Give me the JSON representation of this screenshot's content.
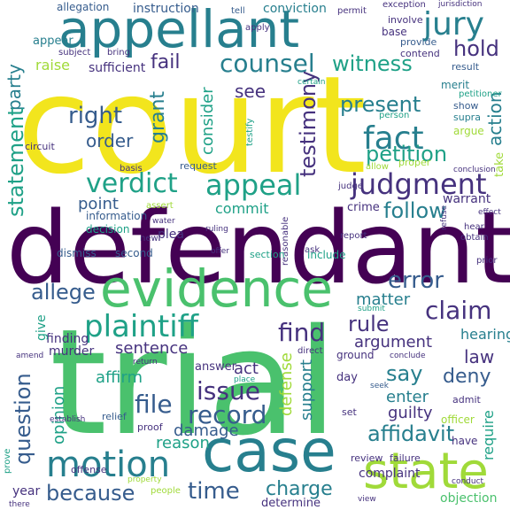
{
  "palette": {
    "yellow": "#f2e51d",
    "lime": "#a0da39",
    "green": "#4ac16d",
    "teal": "#1fa187",
    "cyan": "#277f8e",
    "blue": "#365c8d",
    "indigo": "#46327e",
    "purple": "#440154"
  },
  "words": [
    {
      "text": "court",
      "color": "yellow"
    },
    {
      "text": "defendant",
      "color": "purple"
    },
    {
      "text": "trial",
      "color": "green"
    },
    {
      "text": "appellant",
      "color": "cyan"
    },
    {
      "text": "evidence",
      "color": "green"
    },
    {
      "text": "case",
      "color": "cyan"
    },
    {
      "text": "state",
      "color": "lime"
    },
    {
      "text": "motion",
      "color": "cyan"
    },
    {
      "text": "jury",
      "color": "cyan"
    },
    {
      "text": "counsel",
      "color": "cyan"
    },
    {
      "text": "witness",
      "color": "teal"
    },
    {
      "text": "fail",
      "color": "indigo"
    },
    {
      "text": "party",
      "color": "cyan"
    },
    {
      "text": "hold",
      "color": "indigo"
    },
    {
      "text": "right",
      "color": "blue"
    },
    {
      "text": "order",
      "color": "blue"
    },
    {
      "text": "see",
      "color": "indigo"
    },
    {
      "text": "fact",
      "color": "cyan"
    },
    {
      "text": "present",
      "color": "cyan"
    },
    {
      "text": "petition",
      "color": "teal"
    },
    {
      "text": "testimony",
      "color": "indigo"
    },
    {
      "text": "judgment",
      "color": "indigo"
    },
    {
      "text": "appeal",
      "color": "teal"
    },
    {
      "text": "verdict",
      "color": "teal"
    },
    {
      "text": "statement",
      "color": "teal"
    },
    {
      "text": "point",
      "color": "blue"
    },
    {
      "text": "commit",
      "color": "teal"
    },
    {
      "text": "follow",
      "color": "cyan"
    },
    {
      "text": "error",
      "color": "blue"
    },
    {
      "text": "plaintiff",
      "color": "teal"
    },
    {
      "text": "find",
      "color": "indigo"
    },
    {
      "text": "claim",
      "color": "indigo"
    },
    {
      "text": "allege",
      "color": "blue"
    },
    {
      "text": "rule",
      "color": "indigo"
    },
    {
      "text": "question",
      "color": "blue"
    },
    {
      "text": "issue",
      "color": "indigo"
    },
    {
      "text": "record",
      "color": "blue"
    },
    {
      "text": "file",
      "color": "blue"
    },
    {
      "text": "because",
      "color": "blue"
    },
    {
      "text": "time",
      "color": "blue"
    },
    {
      "text": "charge",
      "color": "cyan"
    },
    {
      "text": "affidavit",
      "color": "cyan"
    },
    {
      "text": "say",
      "color": "cyan"
    },
    {
      "text": "law",
      "color": "indigo"
    },
    {
      "text": "deny",
      "color": "blue"
    },
    {
      "text": "matter",
      "color": "cyan"
    },
    {
      "text": "argument",
      "color": "indigo"
    },
    {
      "text": "raise",
      "color": "lime"
    },
    {
      "text": "grant",
      "color": "cyan"
    },
    {
      "text": "consider",
      "color": "teal"
    },
    {
      "text": "action",
      "color": "cyan"
    },
    {
      "text": "sentence",
      "color": "indigo"
    },
    {
      "text": "affirm",
      "color": "teal"
    },
    {
      "text": "damage",
      "color": "blue"
    },
    {
      "text": "opinion",
      "color": "teal"
    },
    {
      "text": "defense",
      "color": "lime"
    },
    {
      "text": "support",
      "color": "cyan"
    },
    {
      "text": "enter",
      "color": "cyan"
    },
    {
      "text": "guilty",
      "color": "indigo"
    },
    {
      "text": "require",
      "color": "teal"
    },
    {
      "text": "hearing",
      "color": "cyan"
    },
    {
      "text": "give",
      "color": "teal"
    },
    {
      "text": "act",
      "color": "indigo"
    },
    {
      "text": "reason",
      "color": "teal"
    },
    {
      "text": "complaint",
      "color": "indigo"
    },
    {
      "text": "objection",
      "color": "green"
    },
    {
      "text": "sufficient",
      "color": "indigo"
    },
    {
      "text": "instruction",
      "color": "blue"
    },
    {
      "text": "allegation",
      "color": "blue"
    },
    {
      "text": "conviction",
      "color": "cyan"
    },
    {
      "text": "appear",
      "color": "cyan"
    },
    {
      "text": "result",
      "color": "blue"
    },
    {
      "text": "merit",
      "color": "cyan"
    },
    {
      "text": "show",
      "color": "blue"
    },
    {
      "text": "supra",
      "color": "cyan"
    },
    {
      "text": "argue",
      "color": "lime"
    },
    {
      "text": "take",
      "color": "lime"
    },
    {
      "text": "warrant",
      "color": "indigo"
    },
    {
      "text": "crime",
      "color": "indigo"
    },
    {
      "text": "request",
      "color": "blue"
    },
    {
      "text": "information",
      "color": "blue"
    },
    {
      "text": "decision",
      "color": "teal"
    },
    {
      "text": "dismiss",
      "color": "blue"
    },
    {
      "text": "second",
      "color": "blue"
    },
    {
      "text": "plea",
      "color": "indigo"
    },
    {
      "text": "include",
      "color": "teal"
    },
    {
      "text": "finding",
      "color": "indigo"
    },
    {
      "text": "murder",
      "color": "indigo"
    },
    {
      "text": "answer",
      "color": "indigo"
    },
    {
      "text": "ground",
      "color": "indigo"
    },
    {
      "text": "day",
      "color": "indigo"
    },
    {
      "text": "set",
      "color": "indigo"
    },
    {
      "text": "review",
      "color": "indigo"
    },
    {
      "text": "failure",
      "color": "indigo"
    },
    {
      "text": "year",
      "color": "indigo"
    },
    {
      "text": "determine",
      "color": "indigo"
    },
    {
      "text": "officer",
      "color": "lime"
    },
    {
      "text": "have",
      "color": "indigo"
    },
    {
      "text": "admit",
      "color": "indigo"
    },
    {
      "text": "prove",
      "color": "teal"
    },
    {
      "text": "offense",
      "color": "indigo"
    },
    {
      "text": "relief",
      "color": "blue"
    },
    {
      "text": "proof",
      "color": "indigo"
    },
    {
      "text": "people",
      "color": "lime"
    },
    {
      "text": "testify",
      "color": "teal"
    },
    {
      "text": "circuit",
      "color": "indigo"
    },
    {
      "text": "basis",
      "color": "indigo"
    },
    {
      "text": "base",
      "color": "indigo"
    },
    {
      "text": "provide",
      "color": "blue"
    },
    {
      "text": "contend",
      "color": "indigo"
    },
    {
      "text": "involve",
      "color": "indigo"
    },
    {
      "text": "subject",
      "color": "indigo"
    },
    {
      "text": "apply",
      "color": "indigo"
    },
    {
      "text": "tell",
      "color": "blue"
    },
    {
      "text": "permit",
      "color": "indigo"
    },
    {
      "text": "exception",
      "color": "indigo"
    },
    {
      "text": "jurisdiction",
      "color": "indigo"
    },
    {
      "text": "person",
      "color": "teal"
    },
    {
      "text": "judge",
      "color": "indigo"
    },
    {
      "text": "proper",
      "color": "lime"
    },
    {
      "text": "allow",
      "color": "lime"
    },
    {
      "text": "conclusion",
      "color": "indigo"
    },
    {
      "text": "reasonable",
      "color": "indigo"
    },
    {
      "text": "report",
      "color": "indigo"
    },
    {
      "text": "hear",
      "color": "indigo"
    },
    {
      "text": "obtain",
      "color": "indigo"
    },
    {
      "text": "prior",
      "color": "indigo"
    },
    {
      "text": "ask",
      "color": "indigo"
    },
    {
      "text": "section",
      "color": "teal"
    },
    {
      "text": "offer",
      "color": "indigo"
    },
    {
      "text": "water",
      "color": "indigo"
    },
    {
      "text": "new",
      "color": "indigo"
    },
    {
      "text": "refuse",
      "color": "indigo"
    },
    {
      "text": "direct",
      "color": "indigo"
    },
    {
      "text": "seek",
      "color": "blue"
    },
    {
      "text": "conclude",
      "color": "indigo"
    },
    {
      "text": "return",
      "color": "indigo"
    },
    {
      "text": "establish",
      "color": "indigo"
    },
    {
      "text": "amend",
      "color": "indigo"
    },
    {
      "text": "submit",
      "color": "teal"
    },
    {
      "text": "place",
      "color": "teal"
    },
    {
      "text": "conduct",
      "color": "indigo"
    },
    {
      "text": "view",
      "color": "indigo"
    },
    {
      "text": "effect",
      "color": "indigo"
    },
    {
      "text": "intent",
      "color": "indigo"
    },
    {
      "text": "bring",
      "color": "indigo"
    },
    {
      "text": "certain",
      "color": "teal"
    },
    {
      "text": "ruling",
      "color": "indigo"
    },
    {
      "text": "assert",
      "color": "lime"
    },
    {
      "text": "property",
      "color": "lime"
    },
    {
      "text": "there",
      "color": "indigo"
    },
    {
      "text": "petitioner",
      "color": "teal"
    }
  ]
}
